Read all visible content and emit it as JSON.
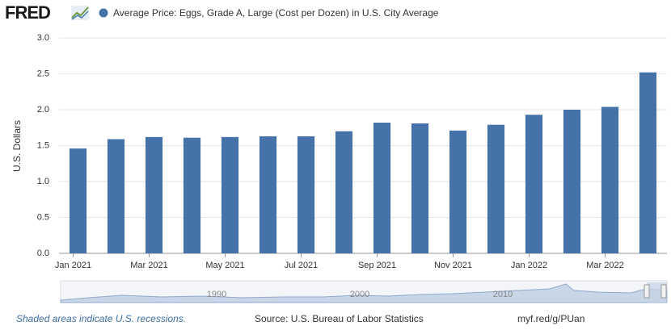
{
  "logo": "FRED",
  "chart_data": {
    "type": "bar",
    "categories": [
      "Jan 2021",
      null,
      "Mar 2021",
      null,
      "May 2021",
      null,
      "Jul 2021",
      null,
      "Sep 2021",
      null,
      "Nov 2021",
      null,
      "Jan 2022",
      null,
      "Mar 2022",
      null
    ],
    "series": [
      {
        "name": "Average Price: Eggs, Grade A, Large (Cost per Dozen) in U.S. City Average",
        "color": "#4572a8",
        "values": [
          1.46,
          1.59,
          1.62,
          1.61,
          1.62,
          1.63,
          1.63,
          1.7,
          1.82,
          1.81,
          1.71,
          1.79,
          1.93,
          2.0,
          2.04,
          2.52
        ]
      }
    ],
    "y_label": "U.S. Dollars",
    "ylim": [
      0,
      3
    ],
    "yticks": [
      {
        "value": 0,
        "label": "0.0"
      },
      0.5,
      {
        "value": 1,
        "label": "1.0"
      },
      1.5,
      {
        "value": 2,
        "label": "2.0"
      },
      2.5,
      {
        "value": 3,
        "label": "3.0"
      }
    ],
    "grid": true
  },
  "navigator_labels": [
    "1990",
    "2000",
    "2010"
  ],
  "footer": {
    "note": "Shaded areas indicate U.S. recessions.",
    "source": "Source: U.S. Bureau of Labor Statistics",
    "link": "myf.red/g/PUan"
  }
}
